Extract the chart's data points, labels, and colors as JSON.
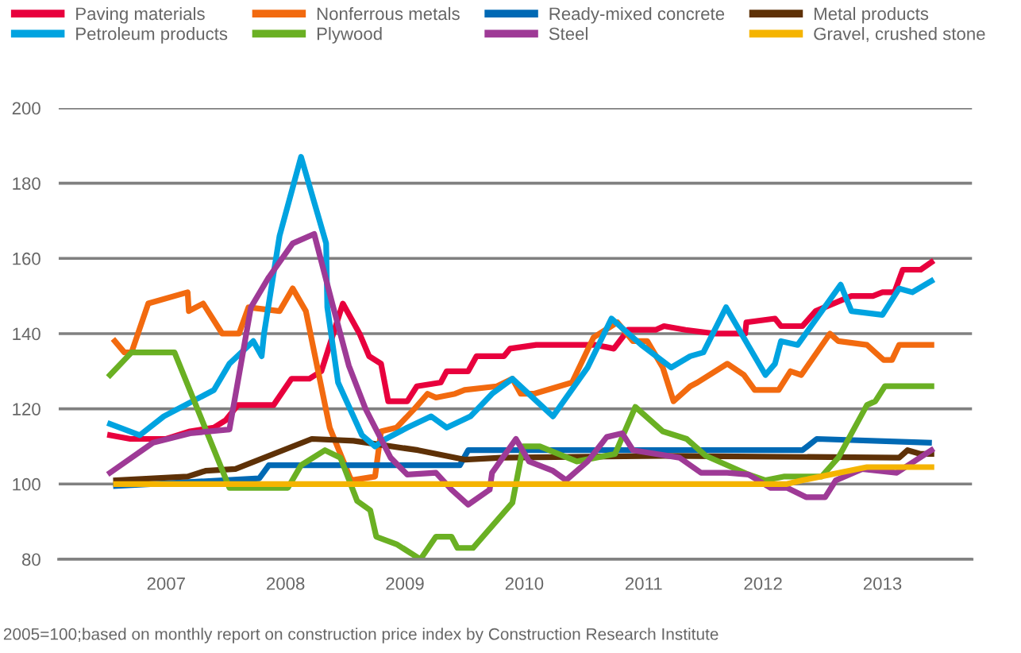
{
  "chart_data": {
    "type": "line",
    "xlim": [
      2006.1,
      2013.75
    ],
    "xticks": [
      {
        "value": 2007,
        "label": "2007"
      },
      {
        "value": 2008,
        "label": "2008"
      },
      {
        "value": 2009,
        "label": "2009"
      },
      {
        "value": 2010,
        "label": "2010"
      },
      {
        "value": 2011,
        "label": "2011"
      },
      {
        "value": 2012,
        "label": "2012"
      },
      {
        "value": 2013,
        "label": "2013"
      }
    ],
    "ylim": [
      80,
      200
    ],
    "yticks": [
      80,
      100,
      120,
      140,
      160,
      180,
      200
    ],
    "grid": "y",
    "legend": "top",
    "marker": "none",
    "line_style": "solid",
    "annotations": [
      "2005=100;based on monthly report on construction price index by Construction Research Institute"
    ],
    "series": [
      {
        "name": "Paving materials",
        "color": "#e8003d",
        "x": [
          2006.53,
          2006.7,
          2007.0,
          2007.2,
          2007.4,
          2007.5,
          2007.6,
          2007.9,
          2008.05,
          2008.2,
          2008.3,
          2008.48,
          2008.62,
          2008.7,
          2008.8,
          2008.86,
          2009.02,
          2009.1,
          2009.3,
          2009.35,
          2009.53,
          2009.6,
          2009.83,
          2009.88,
          2010.1,
          2010.6,
          2010.75,
          2010.87,
          2011.1,
          2011.17,
          2011.35,
          2011.6,
          2011.85,
          2011.86,
          2012.1,
          2012.15,
          2012.33,
          2012.44,
          2012.74,
          2012.92,
          2013.0,
          2013.1,
          2013.17,
          2013.32,
          2013.41
        ],
        "values": [
          113,
          112,
          112,
          114,
          115,
          117,
          121,
          121,
          128,
          128,
          130,
          148,
          140,
          134,
          132,
          122,
          122,
          126,
          127,
          130,
          130,
          134,
          134,
          136,
          137,
          137,
          136,
          141,
          141,
          142,
          141,
          140,
          140,
          143,
          144,
          142,
          142,
          146,
          150,
          150,
          151,
          151,
          157,
          157,
          159
        ]
      },
      {
        "name": "Nonferrous metals",
        "color": "#f26a0f",
        "x": [
          2006.57,
          2006.65,
          2006.71,
          2006.85,
          2007.18,
          2007.19,
          2007.31,
          2007.47,
          2007.61,
          2007.69,
          2007.95,
          2008.06,
          2008.17,
          2008.26,
          2008.37,
          2008.55,
          2008.75,
          2008.8,
          2008.93,
          2009.08,
          2009.19,
          2009.26,
          2009.42,
          2009.5,
          2009.77,
          2009.9,
          2009.97,
          2010.08,
          2010.4,
          2010.58,
          2010.78,
          2010.91,
          2011.03,
          2011.16,
          2011.25,
          2011.39,
          2011.45,
          2011.7,
          2011.84,
          2011.93,
          2012.13,
          2012.23,
          2012.32,
          2012.56,
          2012.63,
          2012.87,
          2013.01,
          2013.08,
          2013.14,
          2013.41
        ],
        "values": [
          138,
          135,
          135,
          148,
          151,
          146,
          148,
          140,
          140,
          147,
          146,
          152,
          146,
          132,
          115,
          101,
          102,
          114,
          115,
          120,
          124,
          123,
          124,
          125,
          126,
          128,
          124,
          124,
          127,
          139,
          143,
          138,
          138,
          131,
          122,
          126,
          127,
          132,
          129,
          125,
          125,
          130,
          129,
          140,
          138,
          137,
          133,
          133,
          137,
          137
        ]
      },
      {
        "name": "Ready-mixed concrete",
        "color": "#0069b4",
        "x": [
          2006.58,
          2007.78,
          2007.86,
          2009.46,
          2009.53,
          2012.33,
          2012.45,
          2013.39
        ],
        "values": [
          99.5,
          101.5,
          105,
          105,
          109,
          109,
          112,
          111
        ]
      },
      {
        "name": "Metal products",
        "color": "#5e3107",
        "x": [
          2006.58,
          2007.18,
          2007.33,
          2007.58,
          2008.22,
          2008.57,
          2009.11,
          2009.5,
          2009.81,
          2011.16,
          2013.14,
          2013.21,
          2013.32,
          2013.41
        ],
        "values": [
          101,
          102,
          103.5,
          104,
          112,
          111.5,
          109,
          106.5,
          107,
          107.5,
          107,
          109,
          108,
          108
        ]
      },
      {
        "name": "Petroleum products",
        "color": "#00a3e0",
        "x": [
          2006.53,
          2006.78,
          2006.98,
          2007.4,
          2007.53,
          2007.73,
          2007.8,
          2007.82,
          2007.95,
          2008.13,
          2008.34,
          2008.35,
          2008.44,
          2008.64,
          2008.75,
          2008.84,
          2009.02,
          2009.22,
          2009.35,
          2009.55,
          2009.73,
          2009.9,
          2010.24,
          2010.53,
          2010.73,
          2010.98,
          2011.23,
          2011.39,
          2011.5,
          2011.69,
          2012.02,
          2012.1,
          2012.15,
          2012.29,
          2012.65,
          2012.74,
          2013.0,
          2013.14,
          2013.25,
          2013.41
        ],
        "values": [
          116,
          113,
          118,
          125,
          132,
          138,
          134,
          140,
          166,
          187,
          164,
          147,
          127,
          113,
          110,
          112,
          115,
          118,
          115,
          118,
          124,
          128,
          118,
          131,
          144,
          137,
          131,
          134,
          135,
          147,
          129,
          132,
          138,
          137,
          153,
          146,
          145,
          152,
          151,
          154
        ]
      },
      {
        "name": "Plywood",
        "color": "#6ab023",
        "x": [
          2006.53,
          2006.71,
          2007.07,
          2007.53,
          2008.02,
          2008.13,
          2008.33,
          2008.46,
          2008.6,
          2008.71,
          2008.76,
          2008.93,
          2009.13,
          2009.26,
          2009.39,
          2009.44,
          2009.57,
          2009.9,
          2009.99,
          2010.13,
          2010.44,
          2010.76,
          2010.93,
          2011.16,
          2011.36,
          2011.52,
          2011.88,
          2012.02,
          2012.18,
          2012.49,
          2012.63,
          2012.87,
          2012.94,
          2013.02,
          2013.41
        ],
        "values": [
          129,
          135,
          135,
          99,
          99,
          105,
          109,
          107,
          95.5,
          93,
          86,
          84,
          80,
          86,
          86,
          83,
          83,
          95,
          110,
          110,
          106,
          108,
          120.5,
          114,
          112,
          107.5,
          102.5,
          101,
          102,
          102,
          107,
          121,
          122,
          126,
          126
        ]
      },
      {
        "name": "Steel",
        "color": "#9e3a96",
        "x": [
          2006.53,
          2006.89,
          2007.2,
          2007.53,
          2007.71,
          2007.86,
          2008.06,
          2008.24,
          2008.4,
          2008.53,
          2008.67,
          2008.88,
          2009.02,
          2009.26,
          2009.39,
          2009.53,
          2009.71,
          2009.73,
          2009.93,
          2010.04,
          2010.24,
          2010.35,
          2010.53,
          2010.69,
          2010.82,
          2010.91,
          2011.3,
          2011.48,
          2011.7,
          2011.88,
          2012.06,
          2012.2,
          2012.36,
          2012.52,
          2012.61,
          2012.83,
          2013.12,
          2013.41
        ],
        "values": [
          103,
          111,
          113.5,
          114.5,
          147,
          155,
          164,
          166.5,
          147,
          131.5,
          120,
          107,
          102.5,
          103,
          98.5,
          94.5,
          98.5,
          103,
          112,
          106,
          103.5,
          101,
          106,
          112.5,
          113.5,
          109,
          107,
          103,
          103,
          102.5,
          99,
          99,
          96.5,
          96.5,
          101,
          104,
          103,
          109
        ]
      },
      {
        "name": "Gravel, crushed stone",
        "color": "#f5b400",
        "x": [
          2006.58,
          2012.2,
          2012.33,
          2012.87,
          2013.41
        ],
        "values": [
          100,
          100,
          101,
          104.5,
          104.5
        ]
      }
    ]
  }
}
